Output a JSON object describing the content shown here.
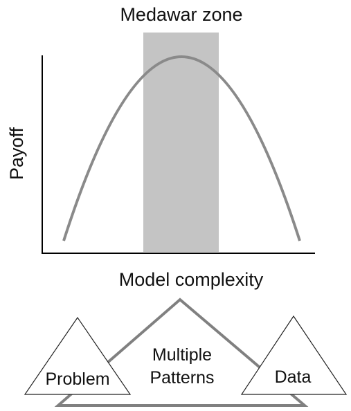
{
  "header": {
    "zone_label": "Medawar zone"
  },
  "plot": {
    "ylabel": "Payoff",
    "xlabel": "Model complexity",
    "curve_color": "#8a8a8a",
    "zone_color": "#c4c4c4",
    "axis_color": "#000000"
  },
  "triangles": {
    "center_label_line1": "Multiple",
    "center_label_line2": "Patterns",
    "left_label": "Problem",
    "right_label": "Data",
    "big_triangle_stroke": "#808080"
  }
}
